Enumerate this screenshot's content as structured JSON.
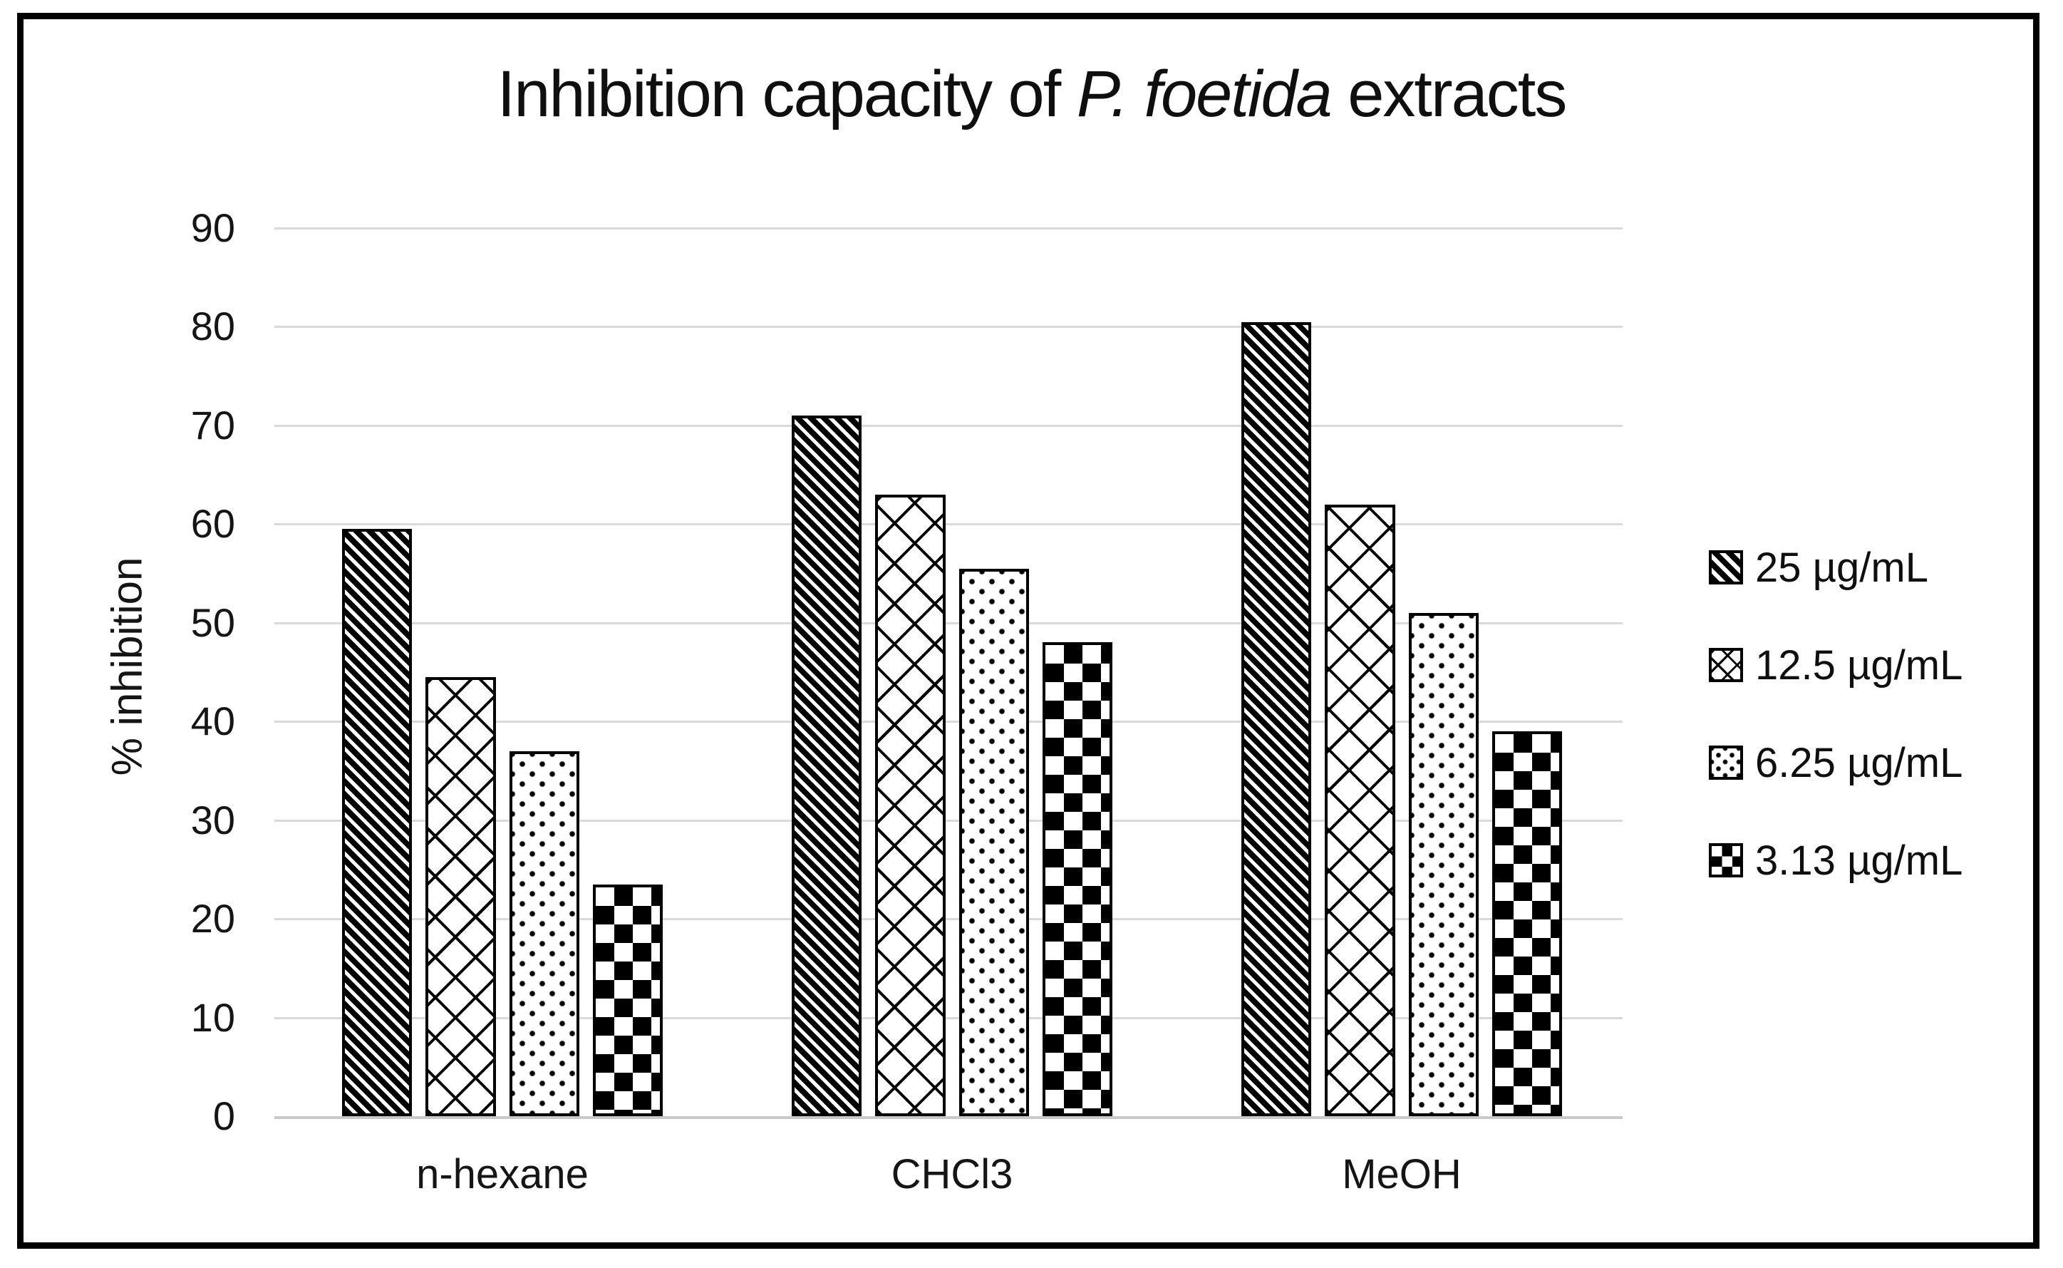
{
  "title": {
    "prefix": "Inhibition capacity of ",
    "italic": "P. foetida",
    "suffix": " extracts"
  },
  "y_axis_label": "% inhibition",
  "chart_data": {
    "type": "bar",
    "title": "Inhibition capacity of P. foetida extracts",
    "title_italic_segment": "P. foetida",
    "categories": [
      "n-hexane",
      "CHCl3",
      "MeOH"
    ],
    "series": [
      {
        "name": "25 µg/mL",
        "pattern": "wide-downward-diagonal",
        "values": [
          59.5,
          71,
          80.5
        ]
      },
      {
        "name": "12.5 µg/mL",
        "pattern": "diamond-lattice",
        "values": [
          44.5,
          63,
          62
        ]
      },
      {
        "name": "6.25 µg/mL",
        "pattern": "dots",
        "values": [
          37,
          55.5,
          51
        ]
      },
      {
        "name": "3.13 µg/mL",
        "pattern": "checkerboard",
        "values": [
          23.5,
          48,
          39
        ]
      }
    ],
    "xlabel": "",
    "ylabel": "% inhibition",
    "ylim": [
      0,
      90
    ],
    "ytick_step": 10,
    "yticks": [
      0,
      10,
      20,
      30,
      40,
      50,
      60,
      70,
      80,
      90
    ],
    "grid": true,
    "legend_position": "right",
    "colors": {
      "bar_fill": "#000000",
      "bar_background": "#ffffff",
      "bar_outline": "#000000",
      "gridline": "#d9d9d9",
      "axis_line": "#c9c9c9",
      "text": "#151515"
    }
  }
}
